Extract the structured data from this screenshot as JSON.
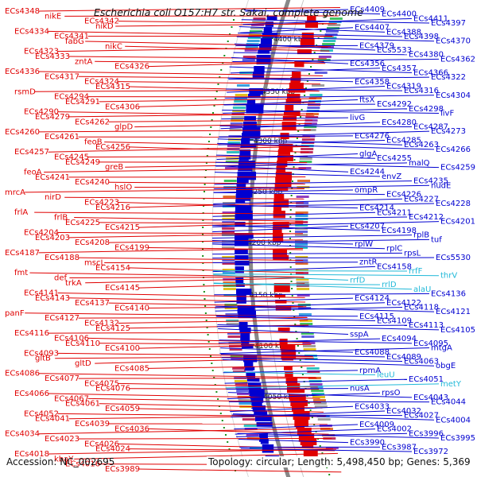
{
  "title": "Escherichia coli O157:H7 str. Sakai, complete genome",
  "accession_text": "Accession: NC_002695",
  "summary_text": "Topology: circular; Length: 5,498,450 bp; Genes: 5,369",
  "colors": {
    "forward": "#e00000",
    "reverse": "#0000d0",
    "rna": "#20b8d8",
    "backbone": "#888888",
    "tick": "#1a8f1a"
  },
  "kbp_ticks": [
    "4400 kbp",
    "4350 kbp",
    "4300 kbp",
    "4250 kbp",
    "4200 kbp",
    "4150 kbp",
    "4100 kbp",
    "4050 kbp"
  ],
  "left_labels": [
    "ECs4348",
    "nikE",
    "ECs4342",
    "nikD",
    "ECs4334",
    "ECs4341",
    "fabG",
    "nikC",
    "ECs4323",
    "ECs4333",
    "zntA",
    "ECs4326",
    "ECs4336",
    "ECs4317",
    "ECs4324",
    "ECs4315",
    "rsmD",
    "ECs4294",
    "ECs4291",
    "ECs4306",
    "ECs4290",
    "ECs4279",
    "ECs4262",
    "glpD",
    "ECs4260",
    "ECs4261",
    "feoB",
    "ECs4256",
    "ECs4257",
    "ECs4245",
    "ECs4249",
    "greB",
    "feoA",
    "ECs4241",
    "ECs4240",
    "hslO",
    "mrcA",
    "nirD",
    "ECs4223",
    "ECs4216",
    "frlA",
    "frlB",
    "ECs4225",
    "ECs4215",
    "ECs4204",
    "ECs4203",
    "ECs4208",
    "ECs4199",
    "ECs4187",
    "ECs4188",
    "mscL",
    "ECs4154",
    "fmt",
    "def",
    "trkA",
    "ECs4145",
    "ECs4141",
    "ECs4143",
    "ECs4137",
    "ECs4140",
    "panF",
    "ECs4127",
    "ECs4132",
    "ECs4125",
    "ECs4116",
    "ECs4106",
    "ECs4110",
    "ECs4100",
    "ECs4093",
    "gltB",
    "gltD",
    "ECs4085",
    "ECs4086",
    "ECs4077",
    "ECs4075",
    "ECs4076",
    "ECs4066",
    "ECs4067",
    "ECs4061",
    "ECs4059",
    "ECs4052",
    "ECs4041",
    "ECs4039",
    "ECs4036",
    "ECs4034",
    "ECs4023",
    "ECs4026",
    "ECs4024",
    "ECs4018",
    "kbaY",
    "ECs4016",
    "ECs3989"
  ],
  "right_labels": [
    "ECs4409",
    "ECs4400",
    "ECs4411",
    "ECs4397",
    "ECs4407",
    "ECs4388",
    "ECs4398",
    "ECs4370",
    "ECs4379",
    "ECs5533",
    "ECs4380",
    "ECs4362",
    "ECs4356",
    "ECs4357",
    "ECs4366",
    "ECs4322",
    "ECs4358",
    "ECs4319",
    "ECs4316",
    "ECs4304",
    "ftsX",
    "ECs4292",
    "ECs4298",
    "livF",
    "livG",
    "ECs4280",
    "ECs4287",
    "ECs4273",
    "ECs4276",
    "ECs4285",
    "ECs4263",
    "ECs4266",
    "glgA",
    "ECs4255",
    "malQ",
    "ECs4259",
    "ECs4244",
    "envZ",
    "ECs4235",
    "nudE",
    "ompR",
    "ECs4226",
    "ECs4227",
    "ECs4228",
    "ECs4214",
    "ECs4211",
    "ECs4212",
    "ECs4201",
    "ECs4207",
    "ECs4198",
    "rplB",
    "tuf",
    "rplW",
    "rplC",
    "rpsL",
    "ECs5530",
    "zntR",
    "ECs4158",
    "rrfF",
    "thrV",
    "rrfD",
    "rrlD",
    "alaU",
    "ECs4136",
    "ECs4124",
    "ECs4122",
    "ECs4118",
    "ECs4121",
    "ECs4115",
    "ECs4109",
    "ECs4113",
    "ECs4105",
    "sspA",
    "ECs4094",
    "ECs4095",
    "mtgA",
    "ECs4088",
    "ECs4089",
    "ECs4063",
    "obgE",
    "rpmA",
    "leuU",
    "ECs4051",
    "metY",
    "nusA",
    "rpsO",
    "ECs4043",
    "ECs4044",
    "ECs4033",
    "ECs4032",
    "ECs4027",
    "ECs4004",
    "ECs4009",
    "ECs4002",
    "ECs3996",
    "ECs3995",
    "ECs3990",
    "ECs3987",
    "ECs3972"
  ],
  "rna_labels": [
    "rrfF",
    "thrV",
    "rrfD",
    "rrlD",
    "alaU",
    "leuU",
    "metY"
  ]
}
